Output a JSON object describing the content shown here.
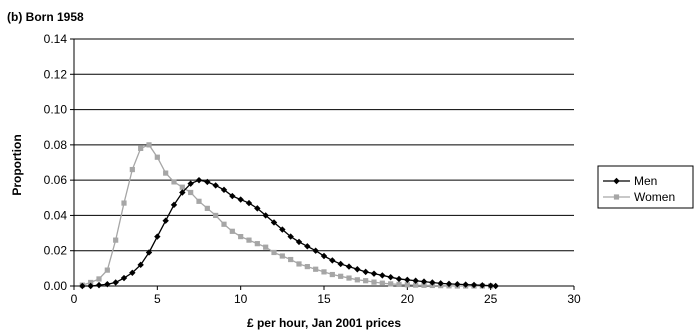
{
  "chart_data": {
    "type": "line",
    "title": "(b) Born 1958",
    "xlabel": "£ per hour, Jan 2001 prices",
    "ylabel": "Proportion",
    "xlim": [
      0,
      30
    ],
    "ylim": [
      0,
      0.14
    ],
    "x_ticks": [
      "0",
      "5",
      "10",
      "15",
      "20",
      "25",
      "30"
    ],
    "y_ticks": [
      "0.00",
      "0.02",
      "0.04",
      "0.06",
      "0.08",
      "0.10",
      "0.12",
      "0.14"
    ],
    "grid": "horizontal",
    "legend_position": "right",
    "series": [
      {
        "name": "Men",
        "color": "#000000",
        "marker": "diamond",
        "x": [
          0.5,
          1.0,
          1.5,
          2.0,
          2.5,
          3.0,
          3.5,
          4.0,
          4.5,
          5.0,
          5.5,
          6.0,
          6.5,
          7.0,
          7.5,
          8.0,
          8.5,
          9.0,
          9.5,
          10.0,
          10.5,
          11.0,
          11.5,
          12.0,
          12.5,
          13.0,
          13.5,
          14.0,
          14.5,
          15.0,
          15.5,
          16.0,
          16.5,
          17.0,
          17.5,
          18.0,
          18.5,
          19.0,
          19.5,
          20.0,
          20.5,
          21.0,
          21.5,
          22.0,
          22.5,
          23.0,
          23.5,
          24.0,
          24.5,
          25.0,
          25.3
        ],
        "y": [
          0.0,
          0.0,
          0.0005,
          0.001,
          0.002,
          0.0045,
          0.0075,
          0.012,
          0.019,
          0.028,
          0.037,
          0.046,
          0.053,
          0.058,
          0.06,
          0.059,
          0.057,
          0.0545,
          0.051,
          0.049,
          0.047,
          0.044,
          0.04,
          0.036,
          0.032,
          0.028,
          0.025,
          0.0225,
          0.02,
          0.017,
          0.0145,
          0.0125,
          0.011,
          0.0095,
          0.008,
          0.007,
          0.006,
          0.005,
          0.004,
          0.0035,
          0.003,
          0.0025,
          0.002,
          0.0015,
          0.0012,
          0.001,
          0.0008,
          0.0006,
          0.0004,
          0.0002,
          0.0
        ]
      },
      {
        "name": "Women",
        "color": "#a6a6a6",
        "marker": "square",
        "x": [
          0.5,
          1.0,
          1.5,
          2.0,
          2.5,
          3.0,
          3.5,
          4.0,
          4.5,
          5.0,
          5.5,
          6.0,
          6.5,
          7.0,
          7.5,
          8.0,
          8.5,
          9.0,
          9.5,
          10.0,
          10.5,
          11.0,
          11.5,
          12.0,
          12.5,
          13.0,
          13.5,
          14.0,
          14.5,
          15.0,
          15.5,
          16.0,
          16.5,
          17.0,
          17.5,
          18.0,
          18.5,
          19.0,
          19.5,
          20.0,
          20.5,
          21.0,
          21.5,
          22.0,
          22.5,
          23.0,
          23.5,
          24.0,
          24.5,
          25.0
        ],
        "y": [
          0.0005,
          0.002,
          0.004,
          0.009,
          0.026,
          0.047,
          0.066,
          0.078,
          0.08,
          0.073,
          0.064,
          0.059,
          0.056,
          0.053,
          0.048,
          0.044,
          0.04,
          0.035,
          0.031,
          0.028,
          0.026,
          0.024,
          0.022,
          0.019,
          0.017,
          0.015,
          0.0125,
          0.011,
          0.0095,
          0.008,
          0.0065,
          0.0055,
          0.0045,
          0.0035,
          0.003,
          0.0022,
          0.0016,
          0.0012,
          0.0009,
          0.0007,
          0.0005,
          0.0004,
          0.0003,
          0.0002,
          0.0001,
          0.0,
          0.0,
          0.0,
          0.0,
          0.0
        ]
      }
    ]
  }
}
